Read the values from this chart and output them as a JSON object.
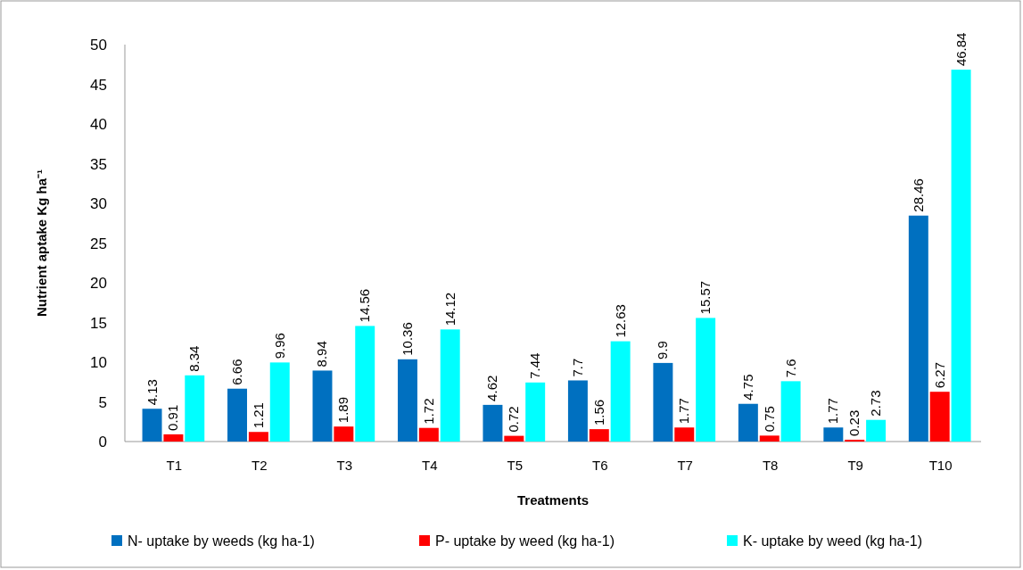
{
  "chart_data": {
    "type": "bar",
    "xlabel": "Treatments",
    "ylabel": "Nutrient aptake Kg ha⁻¹",
    "categories": [
      "T1",
      "T2",
      "T3",
      "T4",
      "T5",
      "T6",
      "T7",
      "T8",
      "T9",
      "T10"
    ],
    "series": [
      {
        "name": "N- uptake by weeds (kg ha-1)",
        "color": "#0070c0",
        "values": [
          4.13,
          6.66,
          8.94,
          10.36,
          4.62,
          7.7,
          9.9,
          4.75,
          1.77,
          28.46
        ]
      },
      {
        "name": "P- uptake by weed (kg ha-1)",
        "color": "#ff0000",
        "values": [
          0.91,
          1.21,
          1.89,
          1.72,
          0.72,
          1.56,
          1.77,
          0.75,
          0.23,
          6.27
        ]
      },
      {
        "name": "K- uptake by weed (kg ha-1)",
        "color": "#00ffff",
        "values": [
          8.34,
          9.96,
          14.56,
          14.12,
          7.44,
          12.63,
          15.57,
          7.6,
          2.73,
          46.84
        ]
      }
    ],
    "ylim": [
      0,
      50
    ],
    "yticks": [
      0,
      5,
      10,
      15,
      20,
      25,
      30,
      35,
      40,
      45,
      50
    ],
    "data_labels": true,
    "legend": "bottom"
  }
}
